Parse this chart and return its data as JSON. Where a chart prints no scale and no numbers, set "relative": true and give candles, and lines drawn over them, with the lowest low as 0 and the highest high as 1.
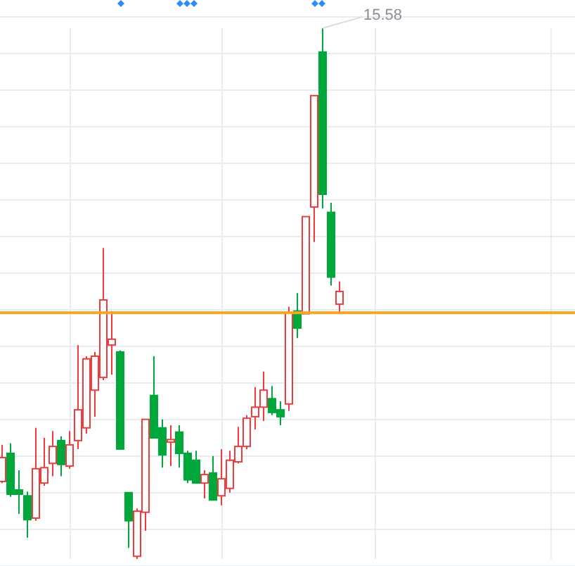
{
  "chart_data": {
    "type": "candlestick",
    "relative": true,
    "grid": true,
    "categories": [
      null,
      null,
      null,
      null,
      null,
      null,
      null,
      null,
      null,
      null,
      null,
      null,
      null,
      null,
      null,
      null,
      null,
      null,
      null,
      null,
      null,
      null,
      null,
      null,
      null,
      null,
      null,
      null,
      null,
      null,
      null,
      null,
      null,
      null,
      null,
      null,
      null,
      null,
      null,
      null,
      null
    ],
    "ohlc": [
      [
        0.146,
        0.215,
        0.143,
        0.191
      ],
      [
        0.199,
        0.218,
        0.117,
        0.122
      ],
      [
        0.13,
        0.167,
        0.085,
        0.122
      ],
      [
        0.119,
        0.127,
        0.04,
        0.074
      ],
      [
        0.077,
        0.247,
        0.072,
        0.17
      ],
      [
        0.143,
        0.228,
        0.138,
        0.172
      ],
      [
        0.18,
        0.241,
        0.156,
        0.212
      ],
      [
        0.223,
        0.231,
        0.156,
        0.178
      ],
      [
        0.175,
        0.241,
        0.17,
        0.215
      ],
      [
        0.223,
        0.403,
        0.207,
        0.281
      ],
      [
        0.247,
        0.382,
        0.236,
        0.377
      ],
      [
        0.318,
        0.39,
        0.268,
        0.382
      ],
      [
        0.342,
        0.586,
        0.337,
        0.488
      ],
      [
        0.403,
        0.467,
        0.347,
        0.414
      ],
      [
        0.39,
        0.393,
        0.207,
        0.207
      ],
      [
        0.125,
        0.125,
        0.021,
        0.072
      ],
      [
        0.005,
        0.095,
        0,
        0.09
      ],
      [
        0.088,
        0.263,
        0.053,
        0.263
      ],
      [
        0.308,
        0.382,
        0.228,
        0.228
      ],
      [
        0.247,
        0.263,
        0.172,
        0.196
      ],
      [
        0.22,
        0.252,
        0.175,
        0.225
      ],
      [
        0.239,
        0.252,
        0.172,
        0.199
      ],
      [
        0.199,
        0.204,
        0.143,
        0.149
      ],
      [
        0.186,
        0.204,
        0.143,
        0.143
      ],
      [
        0.143,
        0.167,
        0.114,
        0.159
      ],
      [
        0.162,
        0.194,
        0.111,
        0.111
      ],
      [
        0.119,
        0.207,
        0.101,
        0.151
      ],
      [
        0.133,
        0.204,
        0.125,
        0.186
      ],
      [
        0.183,
        0.249,
        0.18,
        0.212
      ],
      [
        0.212,
        0.271,
        0.207,
        0.265
      ],
      [
        0.268,
        0.324,
        0.244,
        0.286
      ],
      [
        0.286,
        0.353,
        0.26,
        0.318
      ],
      [
        0.302,
        0.326,
        0.271,
        0.276
      ],
      [
        0.281,
        0.297,
        0.252,
        0.268
      ],
      [
        0.292,
        0.475,
        0.279,
        0.464
      ],
      [
        0.467,
        0.501,
        0.416,
        0.435
      ],
      [
        0.462,
        0.645,
        0.462,
        0.645
      ],
      [
        0.663,
        0.873,
        0.597,
        0.873
      ],
      [
        0.955,
        1,
        0.66,
        0.687
      ],
      [
        0.653,
        0.671,
        0.515,
        0.531
      ],
      [
        0.48,
        0.523,
        0.464,
        0.504
      ]
    ],
    "colors": [
      "#f03c3c",
      "#00a83c",
      "#00a83c",
      "#00a83c",
      "#f03c3c",
      "#f03c3c",
      "#f03c3c",
      "#00a83c",
      "#f03c3c",
      "#f03c3c",
      "#f03c3c",
      "#f03c3c",
      "#f03c3c",
      "#f03c3c",
      "#00a83c",
      "#00a83c",
      "#f03c3c",
      "#f03c3c",
      "#00a83c",
      "#00a83c",
      "#f03c3c",
      "#00a83c",
      "#00a83c",
      "#00a83c",
      "#f03c3c",
      "#00a83c",
      "#f03c3c",
      "#f03c3c",
      "#f03c3c",
      "#f03c3c",
      "#f03c3c",
      "#f03c3c",
      "#00a83c",
      "#00a83c",
      "#f03c3c",
      "#00a83c",
      "#f03c3c",
      "#f03c3c",
      "#00a83c",
      "#00a83c",
      "#f03c3c"
    ],
    "ref_lines": [
      {
        "axis": "y",
        "value": 0.464,
        "color": "#f5a623"
      }
    ],
    "annotations": [
      "15.58"
    ]
  }
}
